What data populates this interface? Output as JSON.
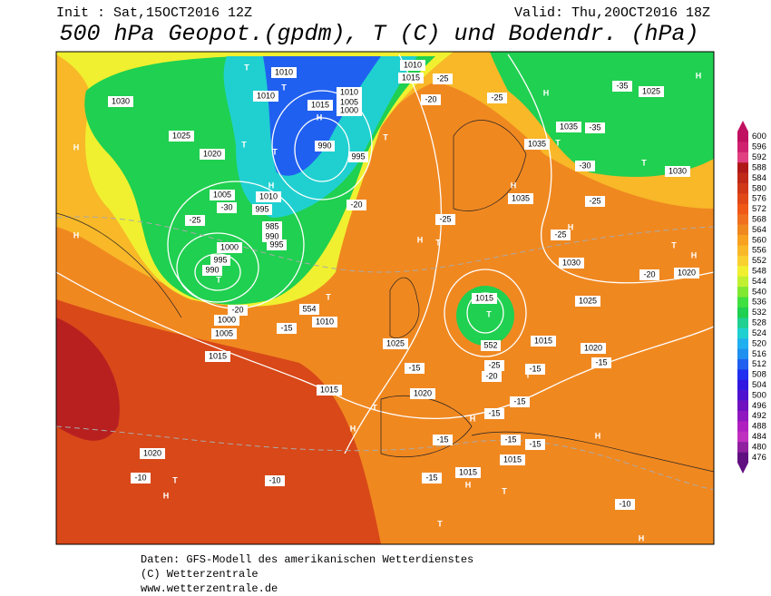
{
  "header": {
    "init": "Init : Sat,15OCT2016 12Z",
    "valid": "Valid: Thu,20OCT2016 18Z",
    "title": "500 hPa Geopot.(gpdm), T (C) und Bodendr. (hPa)"
  },
  "colorbar": {
    "ticks": [
      600,
      596,
      592,
      588,
      584,
      580,
      576,
      572,
      568,
      564,
      560,
      556,
      552,
      548,
      544,
      540,
      536,
      532,
      528,
      524,
      520,
      516,
      512,
      508,
      504,
      500,
      496,
      492,
      488,
      484,
      480,
      476
    ],
    "colors": [
      "#c01060",
      "#d02070",
      "#e04080",
      "#b01818",
      "#c02818",
      "#d03818",
      "#e04818",
      "#f05818",
      "#f07020",
      "#f08820",
      "#f8a020",
      "#f8b828",
      "#f8d030",
      "#f0f030",
      "#c0f030",
      "#80e830",
      "#40e040",
      "#20d050",
      "#20d090",
      "#20d0d0",
      "#20b0f0",
      "#2090f0",
      "#2060f0",
      "#2030f0",
      "#3018e0",
      "#5010d0",
      "#7010c0",
      "#9018c0",
      "#b020c0",
      "#c030c0",
      "#9020a0",
      "#601080"
    ]
  },
  "map_labels": [
    "H",
    "H",
    "T",
    "1030",
    "1025",
    "1020",
    "T",
    "1010",
    "1010",
    "T",
    "T",
    "H",
    "1005",
    "1010",
    "995",
    "985",
    "990",
    "995",
    "-25",
    "-30",
    "1000",
    "995",
    "990",
    "T",
    "-20",
    "1000",
    "1005",
    "1015",
    "1010",
    "554",
    "T",
    "-15",
    "1015",
    "1020",
    "-10",
    "T",
    "H",
    "-10",
    "H",
    "T",
    "1020",
    "-15",
    "1025",
    "H",
    "T",
    "-25",
    "-20",
    "990",
    "995",
    "1015",
    "1010",
    "1005",
    "1000",
    "H",
    "T",
    "1010",
    "1015",
    "-20",
    "-25",
    "1035",
    "1035",
    "H",
    "1035",
    "T",
    "-35",
    "H",
    "-25",
    "1025",
    "-35",
    "H",
    "T",
    "1030",
    "-30",
    "-25",
    "H",
    "-25",
    "T",
    "H",
    "1020",
    "-20",
    "1030",
    "1025",
    "1015",
    "T",
    "552",
    "1015",
    "1020",
    "-15",
    "-15",
    "T",
    "-25",
    "-20",
    "-15",
    "-15",
    "H",
    "-15",
    "-15",
    "-15",
    "1015",
    "1015",
    "H",
    "T",
    "-15",
    "T",
    "H",
    "-10",
    "H"
  ],
  "footer": [
    "Daten: GFS-Modell des amerikanischen Wetterdienstes",
    "(C) Wetterzentrale",
    "www.wetterzentrale.de"
  ]
}
